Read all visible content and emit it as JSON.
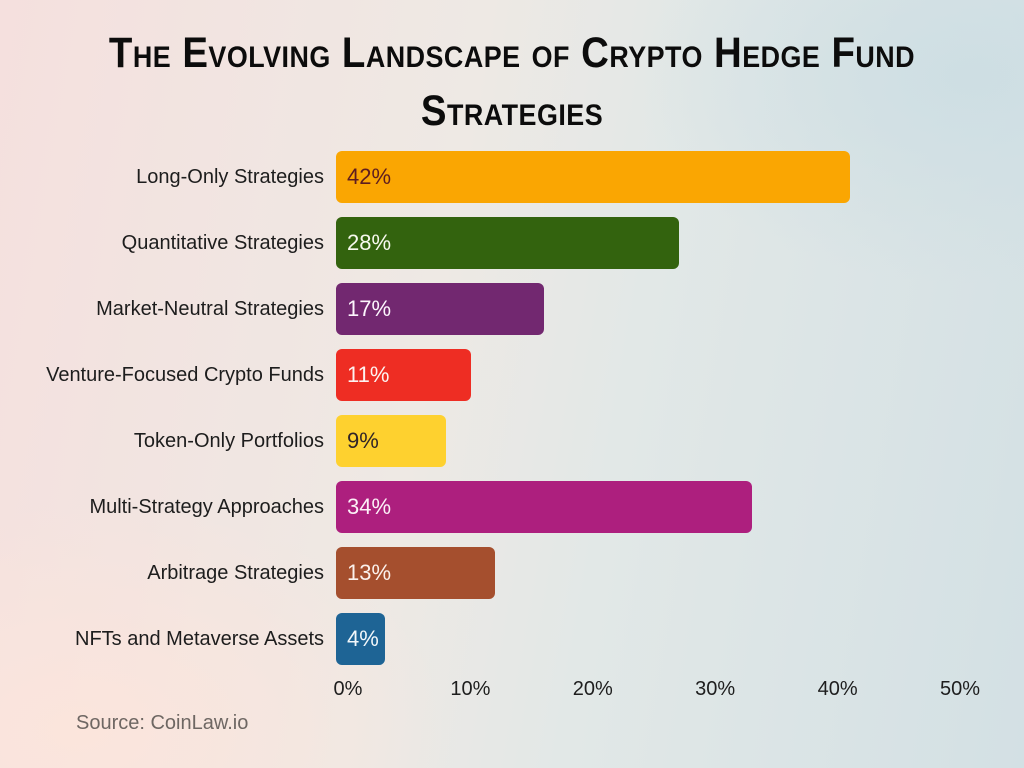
{
  "title_lines": [
    "The Evolving Landscape of Crypto Hedge Fund",
    "Strategies"
  ],
  "source_text": "Source: CoinLaw.io",
  "chart_data": {
    "type": "bar",
    "orientation": "horizontal",
    "title": "The Evolving Landscape of Crypto Hedge Fund Strategies",
    "categories": [
      "Long-Only Strategies",
      "Quantitative Strategies",
      "Market-Neutral Strategies",
      "Venture-Focused Crypto Funds",
      "Token-Only Portfolios",
      "Multi-Strategy Approaches",
      "Arbitrage Strategies",
      "NFTs and Metaverse Assets"
    ],
    "values": [
      42,
      28,
      17,
      11,
      9,
      34,
      13,
      4
    ],
    "value_labels": [
      "42%",
      "28%",
      "17%",
      "11%",
      "9%",
      "34%",
      "13%",
      "4%"
    ],
    "bar_colors": [
      "#faa602",
      "#33630e",
      "#722870",
      "#ee2d23",
      "#fed12f",
      "#ad1f7e",
      "#a54f2e",
      "#1e6495"
    ],
    "value_label_colors": [
      "#5e1d20",
      "#f7f9ee",
      "#fdf6fd",
      "#fdf3f1",
      "#302428",
      "#fcf0f7",
      "#fbf1ec",
      "#f2f7fa"
    ],
    "xlabel": "",
    "ylabel": "",
    "xlim": [
      0,
      50
    ],
    "x_ticks": [
      "0%",
      "10%",
      "20%",
      "30%",
      "40%",
      "50%"
    ],
    "grid": false,
    "legend": false,
    "source": "Source: CoinLaw.io"
  }
}
